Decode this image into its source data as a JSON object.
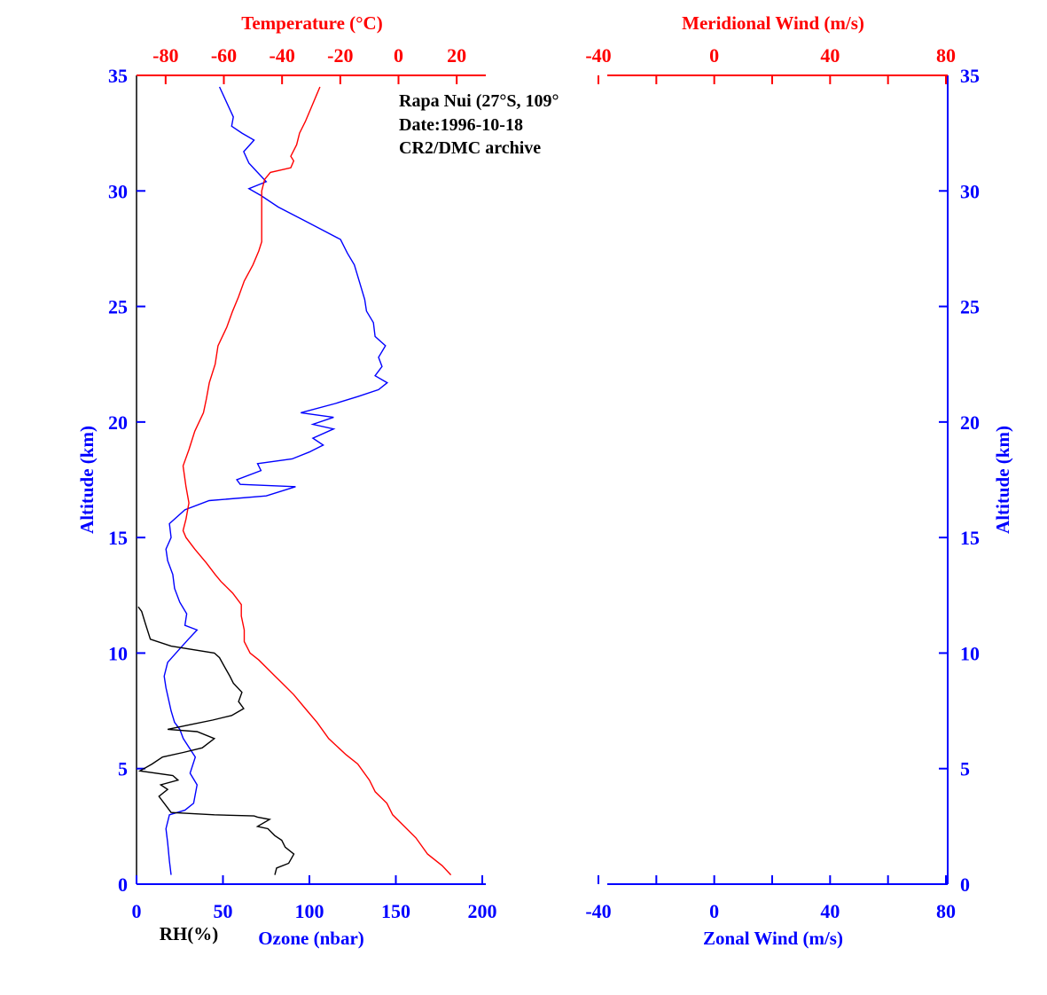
{
  "chart_data": [
    {
      "type": "line",
      "annotation": [
        "Rapa Nui (27°S, 109°",
        "Date:1996-10-18",
        "CR2/DMC archive"
      ],
      "ylabel": "Altitude (km)",
      "ylim": [
        0,
        35
      ],
      "yticks": [
        0,
        5,
        10,
        15,
        20,
        25,
        30,
        35
      ],
      "x_axes": [
        {
          "label": "Ozone (nbar)",
          "position": "bottom",
          "color": "#0000ff",
          "lim": [
            0,
            200
          ],
          "ticks": [
            0,
            50,
            100,
            150,
            200
          ]
        },
        {
          "label": "RH(%)",
          "position": "bottom",
          "color": "#000000",
          "lim": [
            0,
            100
          ]
        },
        {
          "label": "Temperature (°C)",
          "position": "top",
          "color": "#ff0000",
          "lim": [
            -90,
            30
          ],
          "ticks": [
            -80,
            -60,
            -40,
            -20,
            0,
            20
          ]
        }
      ],
      "series": [
        {
          "axis": "Ozone (nbar)",
          "color": "#0000ff",
          "points": [
            [
              20,
              0.4
            ],
            [
              19,
              1.0
            ],
            [
              18,
              1.8
            ],
            [
              17,
              2.4
            ],
            [
              19,
              3.0
            ],
            [
              28,
              3.2
            ],
            [
              33,
              3.5
            ],
            [
              35,
              4.3
            ],
            [
              31,
              4.8
            ],
            [
              34,
              5.5
            ],
            [
              27,
              6.3
            ],
            [
              25,
              6.7
            ],
            [
              22,
              7.0
            ],
            [
              20,
              7.5
            ],
            [
              17,
              8.5
            ],
            [
              16,
              9.0
            ],
            [
              18,
              9.6
            ],
            [
              24,
              10.1
            ],
            [
              30,
              10.6
            ],
            [
              35,
              11.0
            ],
            [
              28,
              11.2
            ],
            [
              29,
              11.7
            ],
            [
              25,
              12.2
            ],
            [
              22,
              12.8
            ],
            [
              21,
              13.4
            ],
            [
              18,
              14.0
            ],
            [
              17,
              14.5
            ],
            [
              20,
              15.0
            ],
            [
              19,
              15.6
            ],
            [
              28,
              16.2
            ],
            [
              42,
              16.6
            ],
            [
              75,
              16.8
            ],
            [
              92,
              17.2
            ],
            [
              60,
              17.3
            ],
            [
              58,
              17.5
            ],
            [
              72,
              17.9
            ],
            [
              70,
              18.2
            ],
            [
              90,
              18.4
            ],
            [
              100,
              18.7
            ],
            [
              108,
              19.0
            ],
            [
              102,
              19.3
            ],
            [
              114,
              19.7
            ],
            [
              102,
              19.9
            ],
            [
              114,
              20.2
            ],
            [
              95,
              20.4
            ],
            [
              115,
              20.8
            ],
            [
              128,
              21.1
            ],
            [
              140,
              21.4
            ],
            [
              145,
              21.7
            ],
            [
              138,
              22.0
            ],
            [
              142,
              22.4
            ],
            [
              140,
              22.8
            ],
            [
              144,
              23.3
            ],
            [
              138,
              23.7
            ],
            [
              137,
              24.3
            ],
            [
              133,
              24.8
            ],
            [
              132,
              25.3
            ],
            [
              130,
              25.8
            ],
            [
              128,
              26.3
            ],
            [
              126,
              26.8
            ],
            [
              122,
              27.3
            ],
            [
              118,
              27.9
            ],
            [
              95,
              28.8
            ],
            [
              82,
              29.3
            ],
            [
              72,
              29.8
            ],
            [
              65,
              30.1
            ],
            [
              75,
              30.4
            ],
            [
              65,
              31.2
            ],
            [
              62,
              31.7
            ],
            [
              68,
              32.2
            ],
            [
              61,
              32.5
            ],
            [
              55,
              32.8
            ],
            [
              56,
              33.2
            ],
            [
              48,
              34.5
            ]
          ]
        },
        {
          "axis": "RH(%)",
          "color": "#000000",
          "points": [
            [
              80,
              0.4
            ],
            [
              81,
              0.7
            ],
            [
              88,
              0.9
            ],
            [
              91,
              1.3
            ],
            [
              86,
              1.6
            ],
            [
              84,
              1.9
            ],
            [
              80,
              2.1
            ],
            [
              76,
              2.4
            ],
            [
              70,
              2.5
            ],
            [
              77,
              2.8
            ],
            [
              70,
              2.9
            ],
            [
              68,
              2.95
            ],
            [
              45,
              3.0
            ],
            [
              20,
              3.1
            ],
            [
              17,
              3.4
            ],
            [
              13,
              3.8
            ],
            [
              18,
              4.1
            ],
            [
              14,
              4.3
            ],
            [
              24,
              4.5
            ],
            [
              21,
              4.7
            ],
            [
              2,
              4.9
            ],
            [
              9,
              5.2
            ],
            [
              15,
              5.5
            ],
            [
              27,
              5.7
            ],
            [
              38,
              5.9
            ],
            [
              45,
              6.3
            ],
            [
              35,
              6.6
            ],
            [
              18,
              6.7
            ],
            [
              31,
              6.9
            ],
            [
              44,
              7.1
            ],
            [
              55,
              7.3
            ],
            [
              62,
              7.6
            ],
            [
              59,
              7.9
            ],
            [
              61,
              8.3
            ],
            [
              56,
              8.7
            ],
            [
              54,
              9.0
            ],
            [
              51,
              9.4
            ],
            [
              48,
              9.8
            ],
            [
              45,
              10.0
            ],
            [
              20,
              10.3
            ],
            [
              8,
              10.6
            ],
            [
              5,
              11.3
            ],
            [
              3,
              11.8
            ],
            [
              1,
              12.0
            ]
          ]
        },
        {
          "axis": "Temperature (°C)",
          "color": "#ff0000",
          "points": [
            [
              18,
              0.4
            ],
            [
              15,
              0.8
            ],
            [
              10,
              1.3
            ],
            [
              6,
              2.0
            ],
            [
              2,
              2.5
            ],
            [
              -2,
              3.0
            ],
            [
              -4,
              3.5
            ],
            [
              -8,
              4.0
            ],
            [
              -10,
              4.5
            ],
            [
              -14,
              5.2
            ],
            [
              -18,
              5.6
            ],
            [
              -24,
              6.3
            ],
            [
              -28,
              7.0
            ],
            [
              -32,
              7.6
            ],
            [
              -36,
              8.2
            ],
            [
              -40,
              8.7
            ],
            [
              -44,
              9.2
            ],
            [
              -48,
              9.7
            ],
            [
              -51,
              10.0
            ],
            [
              -53,
              10.5
            ],
            [
              -53,
              11.0
            ],
            [
              -54,
              11.6
            ],
            [
              -54,
              12.1
            ],
            [
              -57,
              12.6
            ],
            [
              -61,
              13.1
            ],
            [
              -63,
              13.4
            ],
            [
              -66,
              13.9
            ],
            [
              -70,
              14.5
            ],
            [
              -73,
              15.0
            ],
            [
              -74,
              15.3
            ],
            [
              -73,
              15.8
            ],
            [
              -72,
              16.5
            ],
            [
              -73,
              17.2
            ],
            [
              -74,
              18.1
            ],
            [
              -72,
              18.8
            ],
            [
              -70,
              19.6
            ],
            [
              -67,
              20.4
            ],
            [
              -66,
              21.0
            ],
            [
              -65,
              21.7
            ],
            [
              -63,
              22.5
            ],
            [
              -62,
              23.3
            ],
            [
              -59,
              24.1
            ],
            [
              -57,
              24.8
            ],
            [
              -55,
              25.4
            ],
            [
              -53,
              26.1
            ],
            [
              -50,
              26.8
            ],
            [
              -48,
              27.4
            ],
            [
              -47,
              27.8
            ],
            [
              -47,
              28.5
            ],
            [
              -47,
              29.3
            ],
            [
              -47,
              30.0
            ],
            [
              -46,
              30.5
            ],
            [
              -44,
              30.8
            ],
            [
              -37,
              31.0
            ],
            [
              -36,
              31.3
            ],
            [
              -37,
              31.5
            ],
            [
              -35,
              32.0
            ],
            [
              -34,
              32.5
            ],
            [
              -32,
              33.0
            ],
            [
              -30,
              33.6
            ],
            [
              -28,
              34.2
            ],
            [
              -27,
              34.5
            ]
          ]
        }
      ]
    },
    {
      "type": "line",
      "ylabel": "Altitude (km)",
      "ylim": [
        0,
        35
      ],
      "yticks": [
        0,
        5,
        10,
        15,
        20,
        25,
        30,
        35
      ],
      "x_axes": [
        {
          "label": "Zonal Wind (m/s)",
          "position": "bottom",
          "color": "#0000ff",
          "lim": [
            -40,
            80
          ],
          "ticks": [
            -40,
            0,
            40,
            80
          ]
        },
        {
          "label": "Meridional Wind (m/s)",
          "position": "top",
          "color": "#ff0000",
          "lim": [
            -40,
            80
          ],
          "ticks": [
            -40,
            0,
            40,
            80
          ]
        }
      ],
      "series": []
    }
  ]
}
